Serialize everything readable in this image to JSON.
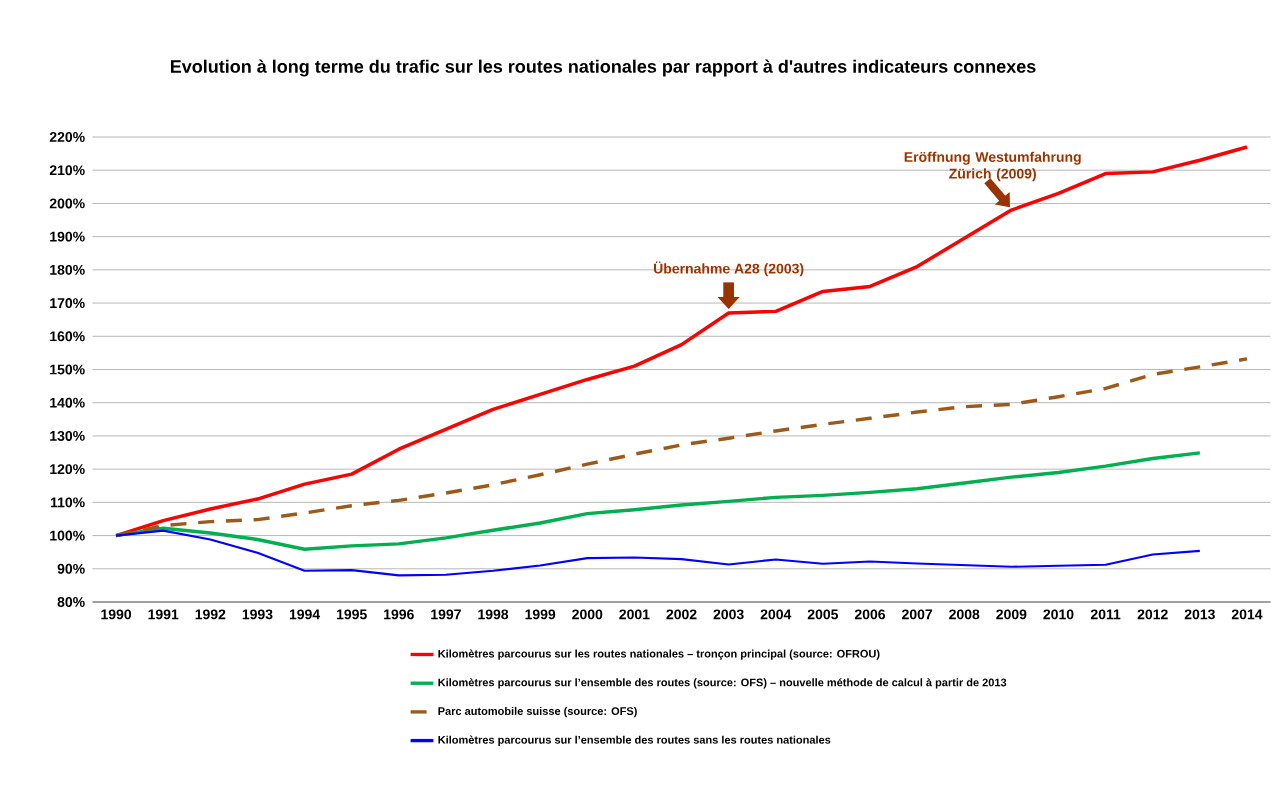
{
  "chart_data": {
    "type": "line",
    "title": "Evolution à long terme du trafic sur les routes nationales par rapport à d'autres indicateurs connexes",
    "categories": [
      "1990",
      "1991",
      "1992",
      "1993",
      "1994",
      "1995",
      "1996",
      "1997",
      "1998",
      "1999",
      "2000",
      "2001",
      "2002",
      "2003",
      "2004",
      "2005",
      "2006",
      "2007",
      "2008",
      "2009",
      "2010",
      "2011",
      "2012",
      "2013",
      "2014"
    ],
    "series": [
      {
        "name": "Kilomètres parcourus sur les routes nationales – tronçon principal (source: OFROU)",
        "color": "#ff0000",
        "values": [
          100,
          104.5,
          108,
          111,
          115.5,
          118.5,
          126,
          132,
          138,
          142.5,
          147,
          151,
          157.5,
          167,
          167.5,
          173.5,
          175,
          181,
          189.5,
          198,
          203,
          209,
          209.5,
          213,
          217
        ]
      },
      {
        "name": "Kilomètres parcourus sur l’ensemble des routes (source: OFS) – nouvelle méthode de calcul à partir de 2013",
        "color": "#00b050",
        "values": [
          100,
          102.2,
          100.8,
          98.8,
          95.9,
          96.9,
          97.5,
          99.3,
          101.6,
          103.8,
          106.6,
          107.8,
          109.2,
          110.3,
          111.5,
          112.1,
          113,
          114.1,
          115.8,
          117.6,
          119,
          120.9,
          123.2,
          124.9,
          null
        ]
      },
      {
        "name": "Parc automobile suisse (source: OFS)",
        "color": "#9c5a1a",
        "line_style": "dashed",
        "values": [
          100,
          103,
          104.2,
          104.8,
          106.8,
          109,
          110.6,
          112.8,
          115.3,
          118.3,
          121.5,
          124.5,
          127.3,
          129.3,
          131.5,
          133.5,
          135.3,
          137.2,
          138.8,
          139.5,
          141.8,
          144.3,
          148.5,
          150.8,
          153.2
        ]
      },
      {
        "name": "Kilomètres parcourus sur l’ensemble des routes sans les routes nationales",
        "color": "#0000ff",
        "values": [
          100,
          101.5,
          98.8,
          94.8,
          89.4,
          89.6,
          88,
          88.2,
          89.4,
          91,
          93.2,
          93.4,
          92.9,
          91.3,
          92.8,
          91.5,
          92.2,
          91.6,
          91.1,
          90.6,
          90.9,
          91.2,
          94.3,
          95.4,
          null
        ]
      }
    ],
    "ylim": [
      80,
      220
    ],
    "yticks": [
      {
        "value": 80,
        "label": "80%"
      },
      {
        "value": 90,
        "label": "90%"
      },
      {
        "value": 100,
        "label": "100%"
      },
      {
        "value": 110,
        "label": "110%"
      },
      {
        "value": 120,
        "label": "120%"
      },
      {
        "value": 130,
        "label": "130%"
      },
      {
        "value": 140,
        "label": "140%"
      },
      {
        "value": 150,
        "label": "150%"
      },
      {
        "value": 160,
        "label": "160%"
      },
      {
        "value": 170,
        "label": "170%"
      },
      {
        "value": 180,
        "label": "180%"
      },
      {
        "value": 190,
        "label": "190%"
      },
      {
        "value": 200,
        "label": "200%"
      },
      {
        "value": 210,
        "label": "210%"
      },
      {
        "value": 220,
        "label": "220%"
      }
    ],
    "grid": "y",
    "legend": "bottom",
    "annotations": [
      {
        "text": "Übernahme A28 (2003)",
        "x": "2003",
        "y": 167
      },
      {
        "text": "Eröffnung Westumfahrung Zürich (2009)",
        "x": "2009",
        "y": 198
      }
    ]
  }
}
